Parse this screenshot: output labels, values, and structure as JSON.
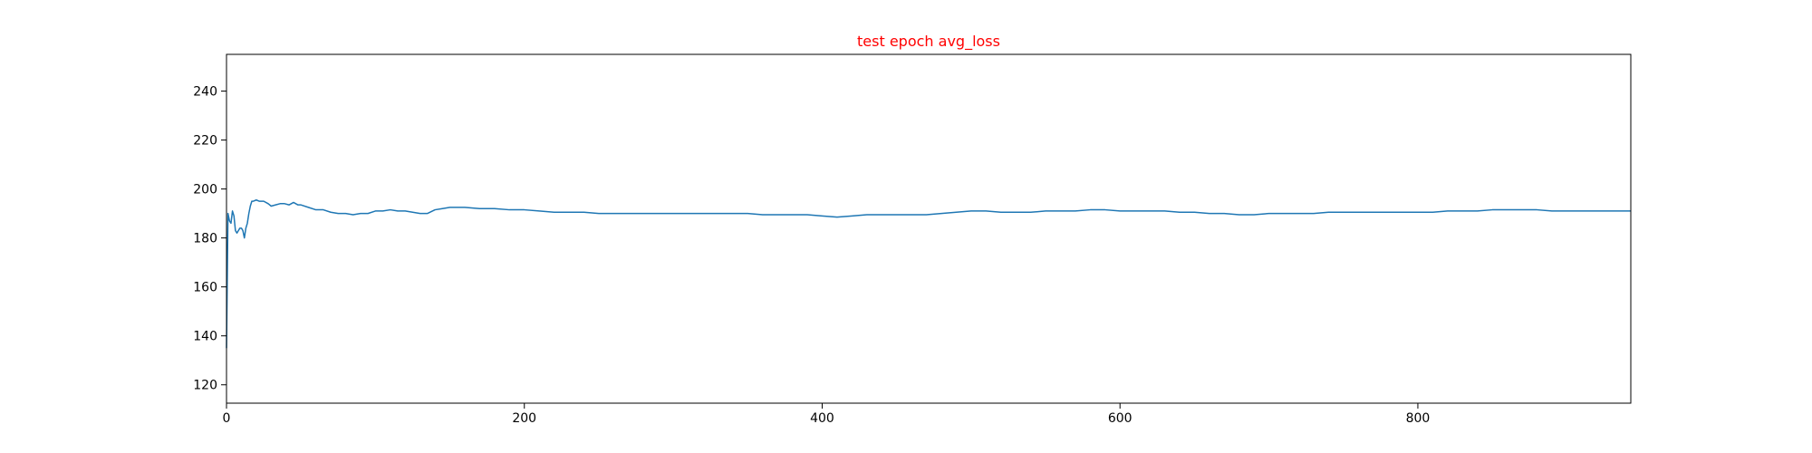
{
  "chart_data": {
    "type": "line",
    "title": "test epoch avg_loss",
    "title_color": "#ff0000",
    "xlabel": "",
    "ylabel": "",
    "xlim": [
      0,
      943
    ],
    "ylim": [
      112.5,
      255
    ],
    "x_ticks": [
      0,
      200,
      400,
      600,
      800
    ],
    "y_ticks": [
      120,
      140,
      160,
      180,
      200,
      220,
      240
    ],
    "grid": false,
    "series": [
      {
        "color": "#1f77b4",
        "x": [
          0,
          1,
          2,
          3,
          4,
          5,
          6,
          7,
          8,
          9,
          10,
          11,
          12,
          13,
          14,
          15,
          16,
          17,
          18,
          20,
          22,
          25,
          28,
          30,
          33,
          36,
          39,
          42,
          45,
          48,
          50,
          55,
          60,
          65,
          70,
          75,
          80,
          85,
          90,
          95,
          100,
          105,
          110,
          115,
          120,
          125,
          130,
          135,
          140,
          145,
          150,
          160,
          170,
          180,
          190,
          200,
          210,
          220,
          230,
          240,
          250,
          260,
          270,
          280,
          290,
          300,
          310,
          320,
          330,
          340,
          350,
          360,
          370,
          380,
          390,
          400,
          410,
          420,
          430,
          440,
          450,
          460,
          470,
          480,
          490,
          500,
          510,
          520,
          530,
          540,
          550,
          560,
          570,
          580,
          590,
          600,
          610,
          620,
          630,
          640,
          650,
          660,
          670,
          680,
          690,
          700,
          710,
          720,
          730,
          740,
          750,
          760,
          770,
          780,
          790,
          800,
          810,
          820,
          830,
          840,
          850,
          860,
          870,
          880,
          890,
          900,
          910,
          920,
          930,
          943
        ],
        "values": [
          135,
          190,
          187,
          186,
          191,
          189,
          183,
          182,
          183,
          184,
          184,
          183,
          180,
          184,
          186,
          190,
          193,
          195,
          195,
          195.5,
          195,
          195,
          194,
          193,
          193.5,
          194,
          194,
          193.5,
          194.5,
          193.5,
          193.5,
          192.5,
          191.5,
          191.5,
          190.5,
          190,
          190,
          189.5,
          190,
          190,
          191,
          191,
          191.5,
          191,
          191,
          190.5,
          190,
          190,
          191.5,
          192,
          192.5,
          192.5,
          192,
          192,
          191.5,
          191.5,
          191,
          190.5,
          190.5,
          190.5,
          190,
          190,
          190,
          190,
          190,
          190,
          190,
          190,
          190,
          190,
          190,
          189.5,
          189.5,
          189.5,
          189.5,
          189,
          188.5,
          189,
          189.5,
          189.5,
          189.5,
          189.5,
          189.5,
          190,
          190.5,
          191,
          191,
          190.5,
          190.5,
          190.5,
          191,
          191,
          191,
          191.5,
          191.5,
          191,
          191,
          191,
          191,
          190.5,
          190.5,
          190,
          190,
          189.5,
          189.5,
          190,
          190,
          190,
          190,
          190.5,
          190.5,
          190.5,
          190.5,
          190.5,
          190.5,
          190.5,
          190.5,
          191,
          191,
          191,
          191.5,
          191.5,
          191.5,
          191.5,
          191,
          191,
          191,
          191,
          191,
          191
        ]
      }
    ]
  }
}
